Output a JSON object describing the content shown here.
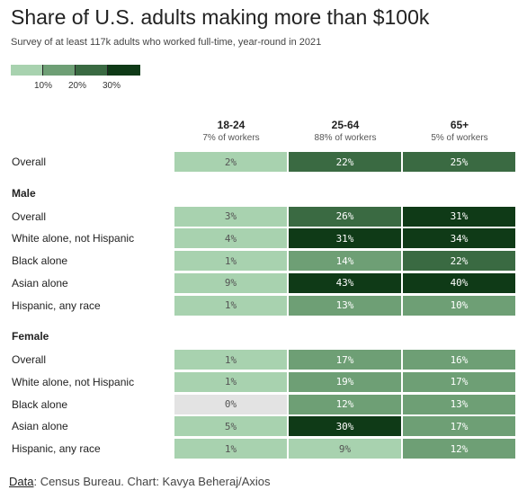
{
  "header": {
    "title": "Share of U.S. adults making more than $100k",
    "subtitle": "Survey of at least 117k adults who worked full-time, year-round in 2021"
  },
  "legend": {
    "ticks": [
      "10%",
      "20%",
      "30%"
    ],
    "colors": [
      "#a8d2af",
      "#6e9f75",
      "#3a6a42",
      "#0f3a17"
    ]
  },
  "footer": {
    "source_label": "Data",
    "source_text": ": Census Bureau. Chart: Kavya Beheraj/Axios"
  },
  "chart_data": {
    "type": "table",
    "columns": [
      {
        "label": "18-24",
        "sublabel": "7% of workers"
      },
      {
        "label": "25-64",
        "sublabel": "88% of workers"
      },
      {
        "label": "65+",
        "sublabel": "5% of workers"
      }
    ],
    "sections": [
      {
        "name": "",
        "rows": [
          {
            "label": "Overall",
            "values": [
              2,
              22,
              25
            ]
          }
        ]
      },
      {
        "name": "Male",
        "rows": [
          {
            "label": "Overall",
            "values": [
              3,
              26,
              31
            ]
          },
          {
            "label": "White alone, not Hispanic",
            "values": [
              4,
              31,
              34
            ]
          },
          {
            "label": "Black alone",
            "values": [
              1,
              14,
              22
            ]
          },
          {
            "label": "Asian alone",
            "values": [
              9,
              43,
              40
            ]
          },
          {
            "label": "Hispanic, any race",
            "values": [
              1,
              13,
              10
            ]
          }
        ]
      },
      {
        "name": "Female",
        "rows": [
          {
            "label": "Overall",
            "values": [
              1,
              17,
              16
            ]
          },
          {
            "label": "White alone, not Hispanic",
            "values": [
              1,
              19,
              17
            ]
          },
          {
            "label": "Black alone",
            "values": [
              0,
              12,
              13
            ]
          },
          {
            "label": "Asian alone",
            "values": [
              5,
              30,
              17
            ]
          },
          {
            "label": "Hispanic, any race",
            "values": [
              1,
              9,
              12
            ]
          }
        ]
      }
    ],
    "unit": "%",
    "zero_color": "#e3e3e3",
    "color_bins": [
      10,
      20,
      30
    ]
  }
}
